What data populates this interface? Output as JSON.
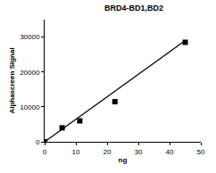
{
  "chart_data": {
    "type": "scatter",
    "title": "BRD4-BD1,BD2",
    "x_label": "ng",
    "y_label": "Alphascreen Signal",
    "series": [
      {
        "type": "scatter",
        "marker": "square",
        "color": "#000000",
        "x": [
          0,
          5.6,
          11.25,
          22.5,
          45
        ],
        "values": [
          0,
          4000,
          6000,
          11500,
          28500
        ]
      },
      {
        "type": "line",
        "line_style": "solid",
        "color": "#000000",
        "x": [
          0,
          45
        ],
        "values": [
          0,
          29000
        ]
      }
    ],
    "xlim": [
      0,
      50
    ],
    "xticks": [
      0,
      10,
      20,
      30,
      40,
      50
    ],
    "ylim": [
      0,
      35000
    ],
    "yticks": [
      0,
      10000,
      20000,
      30000
    ],
    "grid": false
  }
}
